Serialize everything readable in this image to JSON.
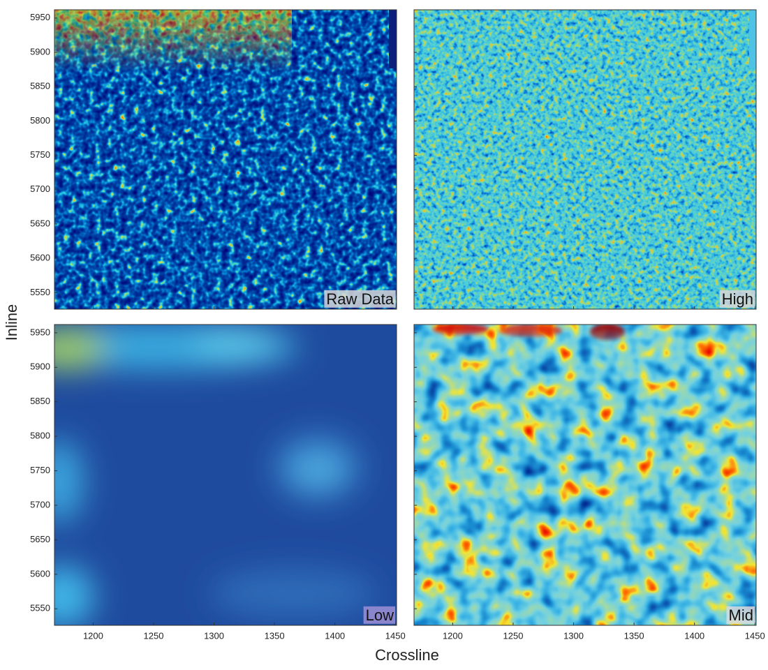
{
  "chart_data": {
    "type": "heatmap",
    "xlabel": "Crossline",
    "ylabel": "Inline",
    "xlim": [
      1168,
      1451
    ],
    "ylim": [
      5526,
      5962
    ],
    "xticks": [
      1200,
      1250,
      1300,
      1350,
      1400,
      1450
    ],
    "yticks": [
      5550,
      5600,
      5650,
      5700,
      5750,
      5800,
      5850,
      5900,
      5950
    ],
    "panels": [
      {
        "label": "Raw Data"
      },
      {
        "label": "High"
      },
      {
        "label": "Low"
      },
      {
        "label": "Mid"
      }
    ]
  }
}
